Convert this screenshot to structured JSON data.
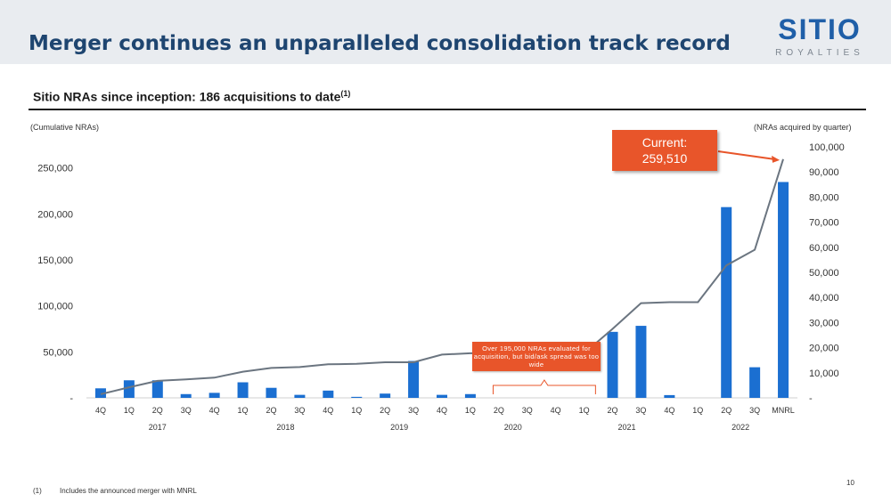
{
  "header": {
    "title": "Merger continues an unparalleled consolidation track record",
    "logo_word": "SITIO",
    "logo_sub": "ROYALTIES"
  },
  "subtitle": {
    "text": "Sitio NRAs since inception: 186 acquisitions to date",
    "sup": "(1)"
  },
  "axis_notes": {
    "left": "(Cumulative NRAs)",
    "right": "(NRAs acquired by quarter)"
  },
  "callout": {
    "label": "Current:",
    "value": "259,510"
  },
  "annotation": {
    "text": "Over 195,000 NRAs evaluated for acquisition, but bid/ask spread was too wide"
  },
  "footnote": {
    "number": "(1)",
    "text": "Includes the announced merger with MNRL"
  },
  "page_number": "10",
  "colors": {
    "bar": "#1b6fd1",
    "line": "#6b7580",
    "accent": "#e8552a",
    "title": "#1e4570"
  },
  "chart_data": {
    "type": "bar+line",
    "categories": [
      "4Q",
      "1Q",
      "2Q",
      "3Q",
      "4Q",
      "1Q",
      "2Q",
      "3Q",
      "4Q",
      "1Q",
      "2Q",
      "3Q",
      "4Q",
      "1Q",
      "2Q",
      "3Q",
      "4Q",
      "1Q",
      "2Q",
      "3Q",
      "4Q",
      "1Q",
      "2Q",
      "3Q",
      "MNRL"
    ],
    "year_groups": [
      {
        "label": "2017",
        "start": 0,
        "end": 4
      },
      {
        "label": "2018",
        "start": 5,
        "end": 8
      },
      {
        "label": "2019",
        "start": 9,
        "end": 12
      },
      {
        "label": "2020",
        "start": 13,
        "end": 16
      },
      {
        "label": "2021",
        "start": 17,
        "end": 20
      },
      {
        "label": "2022",
        "start": 21,
        "end": 24
      }
    ],
    "series": [
      {
        "name": "NRAs acquired by quarter",
        "type": "bar",
        "axis": "right",
        "values": [
          3800,
          7000,
          7000,
          1500,
          2000,
          6200,
          4000,
          1200,
          2900,
          400,
          1700,
          14700,
          1200,
          1500,
          0,
          0,
          0,
          0,
          26300,
          28700,
          1100,
          0,
          76000,
          12200,
          86000
        ]
      },
      {
        "name": "Cumulative NRAs",
        "type": "line",
        "axis": "left",
        "values": [
          4000,
          11500,
          18500,
          20000,
          22000,
          28500,
          32500,
          33500,
          36500,
          37000,
          38700,
          38700,
          47000,
          48500,
          48500,
          48500,
          48500,
          48500,
          75000,
          103000,
          104000,
          104000,
          144000,
          161000,
          259510
        ]
      }
    ],
    "left_axis": {
      "label": "(Cumulative NRAs)",
      "ylim": [
        0,
        270000
      ],
      "ticks": [
        0,
        50000,
        100000,
        150000,
        200000,
        250000
      ],
      "tick_labels": [
        "-",
        "50,000",
        "100,000",
        "150,000",
        "200,000",
        "250,000"
      ]
    },
    "right_axis": {
      "label": "(NRAs acquired by quarter)",
      "ylim": [
        0,
        100000
      ],
      "ticks": [
        0,
        10000,
        20000,
        30000,
        40000,
        50000,
        60000,
        70000,
        80000,
        90000,
        100000
      ],
      "tick_labels": [
        "-",
        "10,000",
        "20,000",
        "30,000",
        "40,000",
        "50,000",
        "60,000",
        "70,000",
        "80,000",
        "90,000",
        "100,000"
      ]
    },
    "bracket_range": {
      "start": 14,
      "end": 17
    },
    "legend": "none",
    "grid": false
  }
}
